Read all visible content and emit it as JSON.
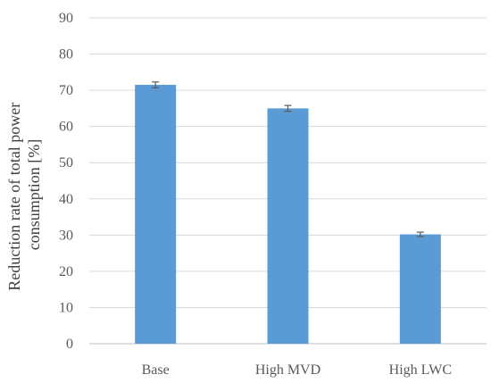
{
  "chart_data": {
    "type": "bar",
    "title": "",
    "xlabel": "",
    "ylabel_lines": [
      "Reduction rate of total power",
      "consumption [%]"
    ],
    "categories": [
      "Base",
      "High MVD",
      "High LWC"
    ],
    "values": [
      71.5,
      65.0,
      30.2
    ],
    "error": [
      0.8,
      0.8,
      0.6
    ],
    "ylim": [
      0,
      90
    ],
    "yticks": [
      0,
      10,
      20,
      30,
      40,
      50,
      60,
      70,
      80,
      90
    ],
    "grid": true,
    "legend": "none",
    "bar_color": "#5b9bd5"
  }
}
